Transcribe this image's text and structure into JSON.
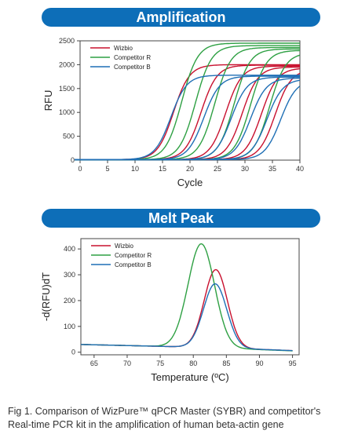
{
  "colors": {
    "banner": "#0d6eb8",
    "wizbio": "#c8102e",
    "competitor_r": "#2ea043",
    "competitor_b": "#1f6fb5"
  },
  "chart_data": [
    {
      "type": "line",
      "title": "Amplification",
      "xlabel": "Cycle",
      "ylabel": "RFU",
      "xlim": [
        0,
        40
      ],
      "ylim": [
        0,
        2500
      ],
      "xticks": [
        0,
        5,
        10,
        15,
        20,
        25,
        30,
        35,
        40
      ],
      "yticks": [
        0,
        500,
        1000,
        1500,
        2000,
        2500
      ],
      "grid": false,
      "legend_placement": "top-left",
      "series": [
        {
          "name": "Wizbio",
          "color": "#c8102e",
          "curves": [
            {
              "midpoint": 17.0,
              "plateau": 2000
            },
            {
              "midpoint": 22.0,
              "plateau": 1990
            },
            {
              "midpoint": 26.5,
              "plateau": 1970
            },
            {
              "midpoint": 29.5,
              "plateau": 1950
            },
            {
              "midpoint": 33.0,
              "plateau": 1930
            },
            {
              "midpoint": 35.5,
              "plateau": 1900
            }
          ]
        },
        {
          "name": "Competitor R",
          "color": "#2ea043",
          "curves": [
            {
              "midpoint": 18.5,
              "plateau": 2450
            },
            {
              "midpoint": 21.0,
              "plateau": 2400
            },
            {
              "midpoint": 24.5,
              "plateau": 2360
            },
            {
              "midpoint": 28.0,
              "plateau": 2330
            },
            {
              "midpoint": 31.0,
              "plateau": 2300
            },
            {
              "midpoint": 34.5,
              "plateau": 2250
            }
          ]
        },
        {
          "name": "Competitor B",
          "color": "#1f6fb5",
          "curves": [
            {
              "midpoint": 16.5,
              "plateau": 1780
            },
            {
              "midpoint": 22.5,
              "plateau": 1760
            },
            {
              "midpoint": 27.5,
              "plateau": 1740
            },
            {
              "midpoint": 31.0,
              "plateau": 1720
            },
            {
              "midpoint": 34.0,
              "plateau": 1700
            },
            {
              "midpoint": 36.5,
              "plateau": 1690
            }
          ]
        }
      ]
    },
    {
      "type": "line",
      "title": "Melt Peak",
      "xlabel": "Temperature (ºC)",
      "ylabel": "-d(RFU)dT",
      "xlim": [
        63,
        96
      ],
      "ylim": [
        -10,
        440
      ],
      "xticks": [
        65,
        70,
        75,
        80,
        85,
        90,
        95
      ],
      "yticks": [
        0,
        100,
        200,
        300,
        400
      ],
      "grid": false,
      "legend_placement": "top-left",
      "series": [
        {
          "name": "Wizbio",
          "color": "#c8102e",
          "peak_temp": 83.4,
          "peak_value": 320
        },
        {
          "name": "Competitor R",
          "color": "#2ea043",
          "peak_temp": 81.2,
          "peak_value": 420
        },
        {
          "name": "Competitor B",
          "color": "#1f6fb5",
          "peak_temp": 83.3,
          "peak_value": 265
        }
      ]
    }
  ],
  "caption": {
    "line1": "Fig 1. Comparison of WizPure™ qPCR Master (SYBR) and competitor's",
    "line2": "Real-time PCR kit in the amplification of human beta-actin gene"
  }
}
